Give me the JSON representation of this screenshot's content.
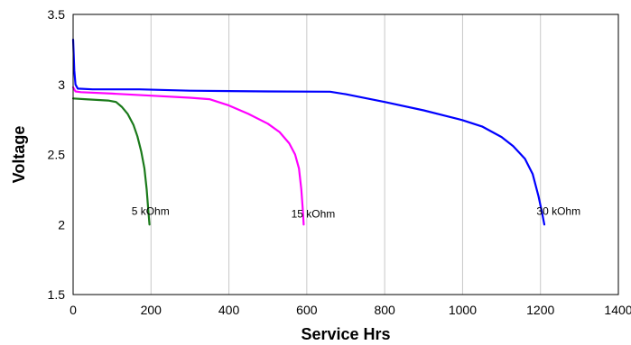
{
  "chart_data": {
    "type": "line",
    "title": "",
    "xlabel": "Service Hrs",
    "ylabel": "Voltage",
    "xlim": [
      0,
      1400
    ],
    "ylim": [
      1.5,
      3.5
    ],
    "x_ticks": [
      0,
      200,
      400,
      600,
      800,
      1000,
      1200,
      1400
    ],
    "y_ticks": [
      1.5,
      2,
      2.5,
      3,
      3.5
    ],
    "x_tick_labels": [
      "0",
      "200",
      "400",
      "600",
      "800",
      "1000",
      "1200",
      "1400"
    ],
    "y_tick_labels": [
      "1.5",
      "2",
      "2.5",
      "3",
      "3.5"
    ],
    "grid": "vertical",
    "legend": "none",
    "series": [
      {
        "name": "5 kOhm",
        "color": "#1a7a1a",
        "points": [
          [
            0,
            2.9
          ],
          [
            30,
            2.895
          ],
          [
            60,
            2.89
          ],
          [
            90,
            2.885
          ],
          [
            110,
            2.875
          ],
          [
            125,
            2.84
          ],
          [
            140,
            2.79
          ],
          [
            155,
            2.71
          ],
          [
            165,
            2.63
          ],
          [
            175,
            2.52
          ],
          [
            183,
            2.4
          ],
          [
            189,
            2.25
          ],
          [
            193,
            2.1
          ],
          [
            196,
            2.0
          ]
        ],
        "label_at": [
          150,
          2.07
        ]
      },
      {
        "name": "15 kOhm",
        "color": "#ff00ff",
        "points": [
          [
            0,
            2.98
          ],
          [
            6,
            2.95
          ],
          [
            20,
            2.945
          ],
          [
            100,
            2.935
          ],
          [
            200,
            2.92
          ],
          [
            300,
            2.905
          ],
          [
            350,
            2.895
          ],
          [
            400,
            2.85
          ],
          [
            450,
            2.79
          ],
          [
            500,
            2.72
          ],
          [
            530,
            2.66
          ],
          [
            555,
            2.58
          ],
          [
            570,
            2.5
          ],
          [
            580,
            2.4
          ],
          [
            586,
            2.25
          ],
          [
            590,
            2.1
          ],
          [
            592,
            2.0
          ]
        ],
        "label_at": [
          560,
          2.05
        ]
      },
      {
        "name": "30 kOhm",
        "color": "#0000ff",
        "points": [
          [
            0,
            3.32
          ],
          [
            3,
            3.1
          ],
          [
            6,
            3.0
          ],
          [
            12,
            2.97
          ],
          [
            50,
            2.965
          ],
          [
            170,
            2.965
          ],
          [
            300,
            2.955
          ],
          [
            500,
            2.95
          ],
          [
            660,
            2.948
          ],
          [
            700,
            2.93
          ],
          [
            800,
            2.875
          ],
          [
            900,
            2.815
          ],
          [
            1000,
            2.745
          ],
          [
            1050,
            2.7
          ],
          [
            1100,
            2.625
          ],
          [
            1130,
            2.56
          ],
          [
            1160,
            2.47
          ],
          [
            1180,
            2.36
          ],
          [
            1195,
            2.2
          ],
          [
            1205,
            2.07
          ],
          [
            1210,
            2.0
          ]
        ],
        "label_at": [
          1190,
          2.07
        ]
      }
    ]
  }
}
